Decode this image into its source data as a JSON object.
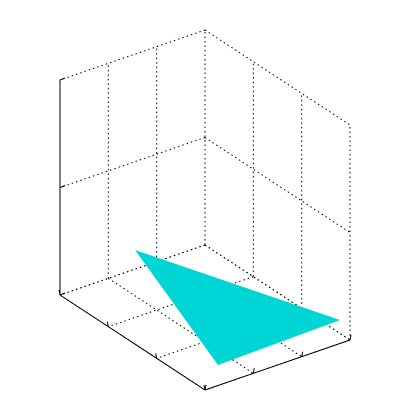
{
  "chart_data": {
    "type": "patch",
    "color": "#00d5d5",
    "grid": true
  }
}
